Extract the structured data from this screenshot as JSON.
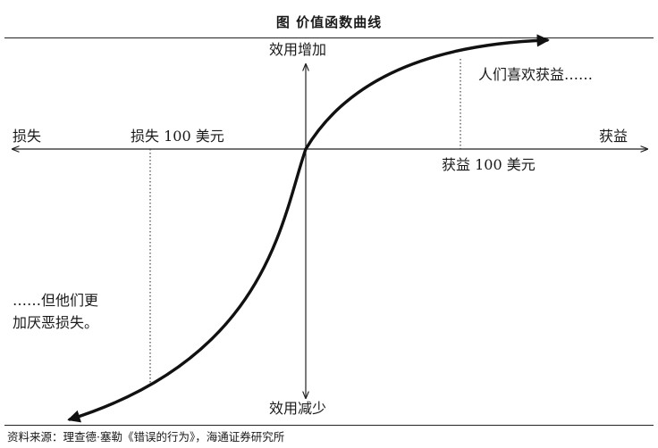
{
  "title": "图  价值函数曲线",
  "axes": {
    "y_top": "效用增加",
    "y_bottom": "效用减少",
    "x_left": "损失",
    "x_right": "获益"
  },
  "markers": {
    "loss_100": "损失 100 美元",
    "gain_100": "获益 100 美元"
  },
  "annotations": {
    "gain_note": "人们喜欢获益……",
    "loss_note_line1": "……但他们更",
    "loss_note_line2": "加厌恶损失。"
  },
  "source": "资料来源：理查德·塞勒《错误的行为》，海通证券研究所"
}
